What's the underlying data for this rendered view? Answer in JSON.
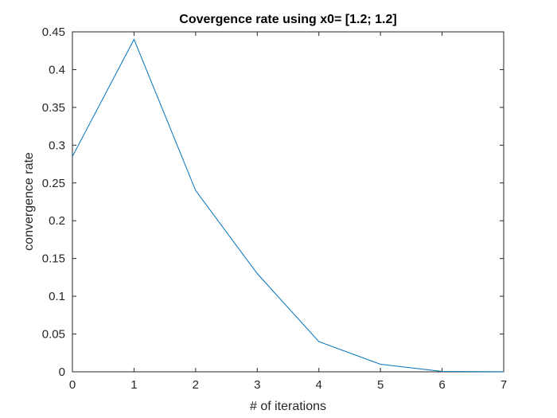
{
  "chart_data": {
    "type": "line",
    "title": "Covergence rate using x0= [1.2; 1.2]",
    "xlabel": "# of iterations",
    "ylabel": "convergence rate",
    "xlim": [
      0,
      7
    ],
    "ylim": [
      0,
      0.45
    ],
    "xticks": [
      "0",
      "1",
      "2",
      "3",
      "4",
      "5",
      "6",
      "7"
    ],
    "yticks": [
      "0",
      "0.05",
      "0.1",
      "0.15",
      "0.2",
      "0.25",
      "0.3",
      "0.35",
      "0.4",
      "0.45"
    ],
    "grid": false,
    "series": [
      {
        "x": [
          0,
          1,
          2,
          3,
          4,
          5,
          6,
          7
        ],
        "values": [
          0.285,
          0.44,
          0.24,
          0.13,
          0.04,
          0.01,
          0.0005,
          0.0001
        ],
        "color": "#0072BD"
      }
    ]
  }
}
